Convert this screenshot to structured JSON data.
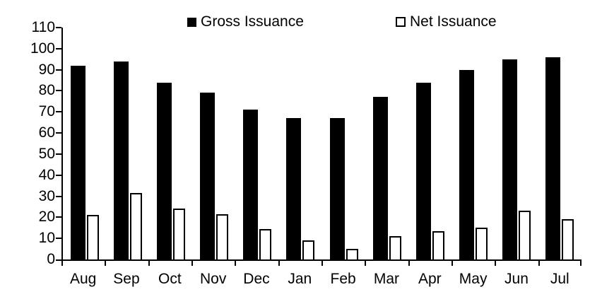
{
  "colors": {
    "bar_fill": "#000000",
    "net_bar_fill": "#ffffff",
    "net_bar_border": "#000000",
    "axis": "#000000",
    "background": "#ffffff"
  },
  "chart_data": {
    "type": "bar",
    "title": "",
    "xlabel": "",
    "ylabel": "",
    "categories": [
      "Aug",
      "Sep",
      "Oct",
      "Nov",
      "Dec",
      "Jan",
      "Feb",
      "Mar",
      "Apr",
      "May",
      "Jun",
      "Jul"
    ],
    "series": [
      {
        "name": "Gross Issuance",
        "style": "filled-black",
        "values": [
          92,
          94,
          84,
          79,
          71,
          67,
          67,
          77,
          84,
          90,
          95,
          96
        ]
      },
      {
        "name": "Net Issuance",
        "style": "white-outlined",
        "values": [
          21,
          31.5,
          24,
          21.5,
          14.5,
          9,
          5,
          11,
          13.5,
          15,
          23,
          19
        ]
      }
    ],
    "ylim": [
      0,
      110
    ],
    "yticks": [
      "0",
      "10",
      "20",
      "30",
      "40",
      "50",
      "60",
      "70",
      "80",
      "90",
      "100",
      "110"
    ],
    "grid": false,
    "legend_position": "top-center"
  }
}
